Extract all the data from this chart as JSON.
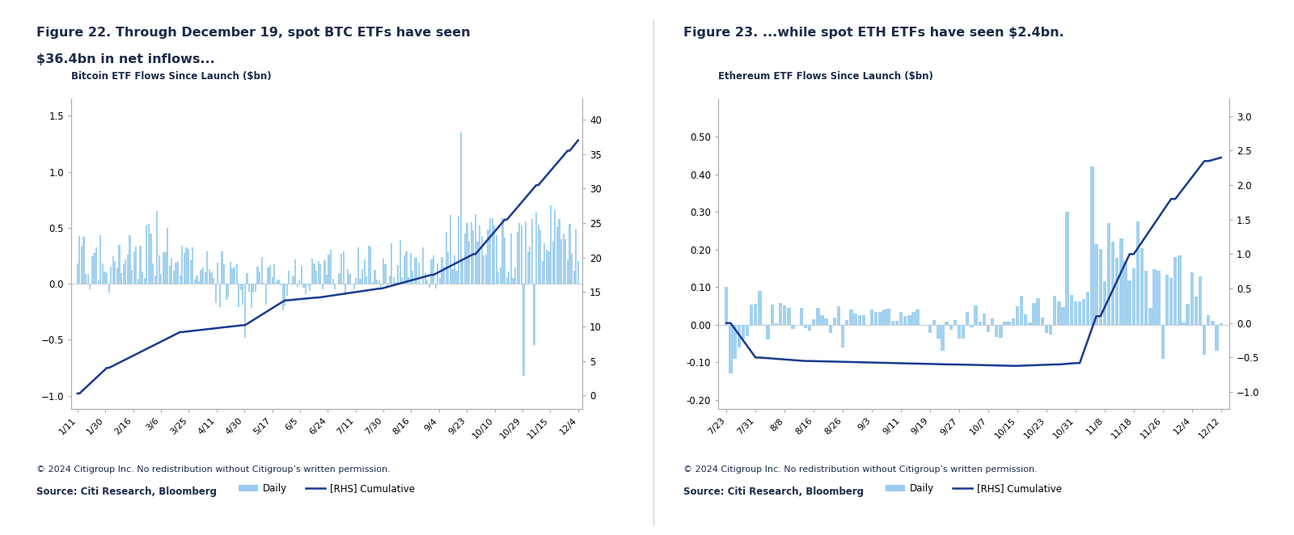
{
  "fig_width": 16.0,
  "fig_height": 6.62,
  "background_color": "#ffffff",
  "top_bar_color": "#1b2a4a",
  "bottom_bar_color": "#1b2a4a",
  "bar_light_blue": "#99ccee",
  "line_dark_blue": "#1a3a8f",
  "left_title_line1": "Figure 22. Through December 19, spot BTC ETFs have seen",
  "left_title_line2": "$36.4bn in net inflows...",
  "right_title": "Figure 23. ...while spot ETH ETFs have seen $2.4bn.",
  "left_ylabel": "Bitcoin ETF Flows Since Launch ($bn)",
  "right_ylabel": "Ethereum ETF Flows Since Launch ($bn)",
  "left_yticks": [
    -1.0,
    -0.5,
    0.0,
    0.5,
    1.0,
    1.5
  ],
  "left_rhs_yticks": [
    0,
    5,
    10,
    15,
    20,
    25,
    30,
    35,
    40
  ],
  "right_yticks": [
    -0.2,
    -0.1,
    0.0,
    0.1,
    0.2,
    0.3,
    0.4,
    0.5
  ],
  "right_rhs_yticks": [
    -1.0,
    -0.5,
    0.0,
    0.5,
    1.0,
    1.5,
    2.0,
    2.5,
    3.0
  ],
  "left_xticks": [
    "1/11",
    "1/30",
    "2/16",
    "3/6",
    "3/25",
    "4/11",
    "4/30",
    "5/17",
    "6/5",
    "6/24",
    "7/11",
    "7/30",
    "8/16",
    "9/4",
    "9/23",
    "10/10",
    "10/29",
    "11/15",
    "12/4"
  ],
  "right_xticks": [
    "7/23",
    "7/31",
    "8/8",
    "8/16",
    "8/26",
    "9/3",
    "9/11",
    "9/19",
    "9/27",
    "10/7",
    "10/15",
    "10/23",
    "10/31",
    "11/8",
    "11/18",
    "11/26",
    "12/4",
    "12/12"
  ],
  "legend_label_daily": "Daily",
  "legend_label_cumulative": "[RHS] Cumulative",
  "copyright_line1": "© 2024 Citigroup Inc. No redistribution without Citigroup’s written permission.",
  "copyright_line2": "Source: Citi Research, Bloomberg",
  "title_color": "#1b2a4a",
  "copyright_color": "#1b2a4a"
}
